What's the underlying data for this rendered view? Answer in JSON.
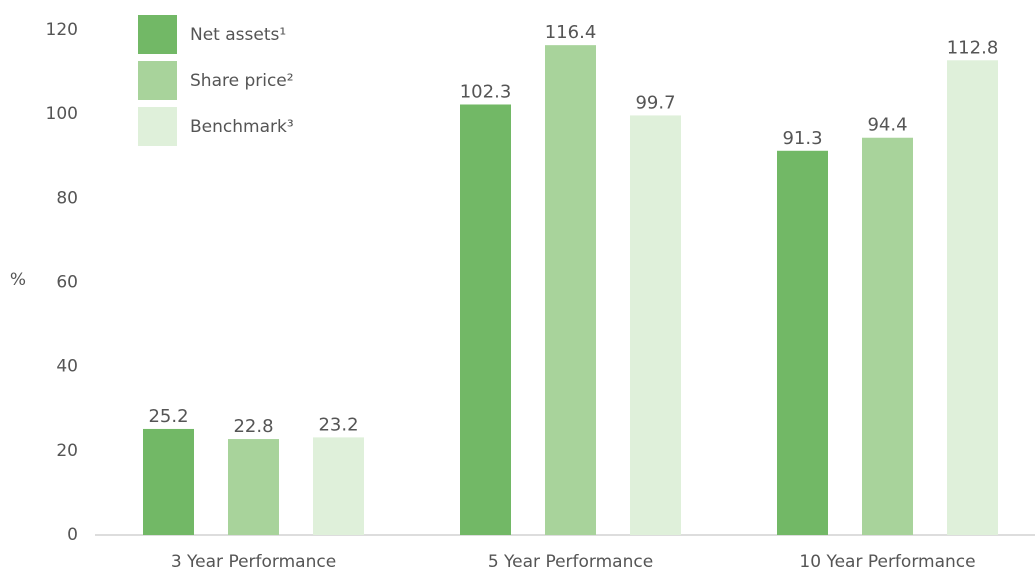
{
  "chart_data": {
    "type": "bar",
    "y_label": "%",
    "categories": [
      "3 Year Performance",
      "5 Year Performance",
      "10 Year Performance"
    ],
    "series": [
      {
        "name": "Net assets¹",
        "color": "#72b866",
        "values": [
          25.2,
          102.3,
          91.3
        ]
      },
      {
        "name": "Share price²",
        "color": "#a8d39b",
        "values": [
          22.8,
          116.4,
          94.4
        ]
      },
      {
        "name": "Benchmark³",
        "color": "#dff0da",
        "values": [
          23.2,
          99.7,
          112.8
        ]
      }
    ],
    "ylim": [
      0,
      120
    ],
    "yticks": [
      0,
      20,
      40,
      60,
      80,
      100,
      120
    ],
    "grid": false,
    "legend": "upper left"
  }
}
